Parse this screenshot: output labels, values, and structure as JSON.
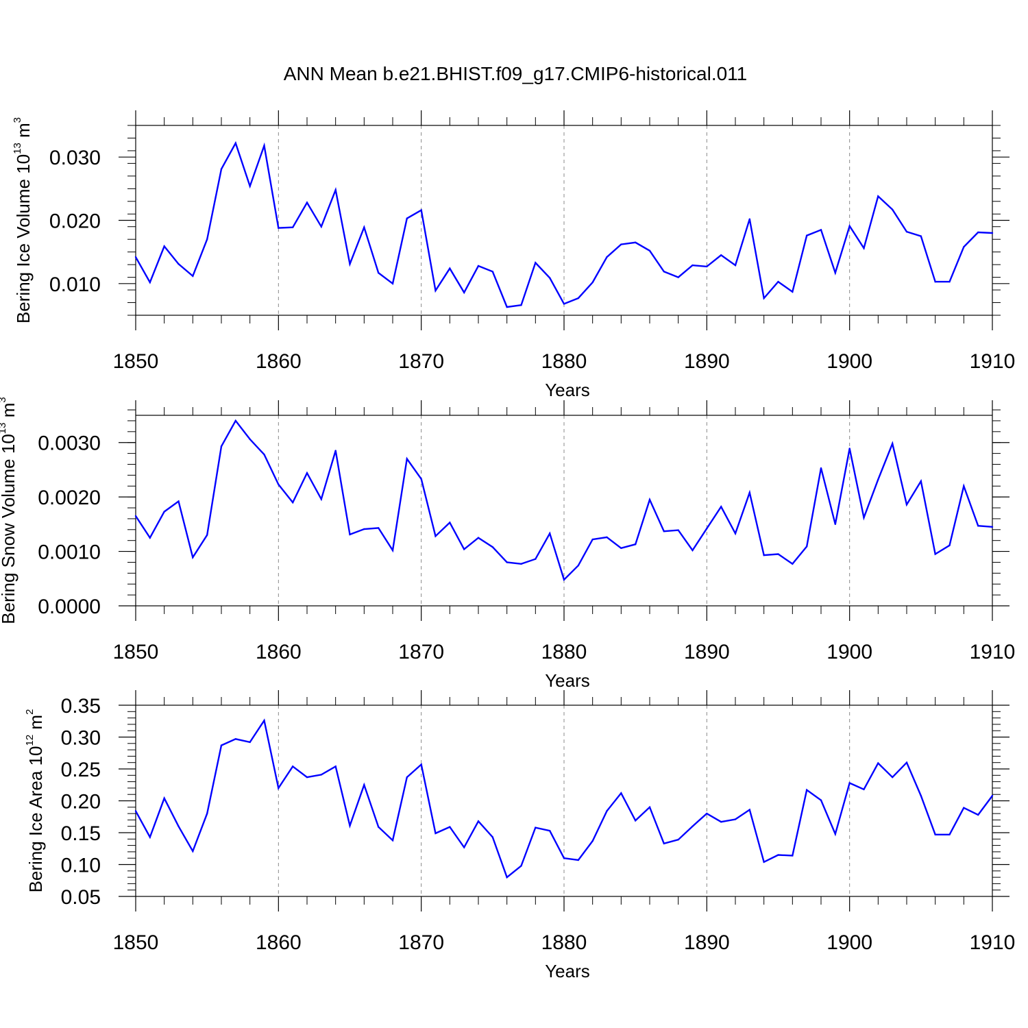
{
  "title": "ANN Mean b.e21.BHIST.f09_g17.CMIP6-historical.011",
  "colors": {
    "line": "#0000ff",
    "axes": "#000000",
    "grid": "#888888"
  },
  "chart_data": [
    {
      "type": "line",
      "ylabel": {
        "text": "Bering Ice Volume 10",
        "exp": "13",
        "unit": " m",
        "unit_exp": "3"
      },
      "xlabel": "Years",
      "xlim": [
        1850,
        1910
      ],
      "ylim": [
        0.005,
        0.035
      ],
      "xticks": [
        1850,
        1860,
        1870,
        1880,
        1890,
        1900,
        1910
      ],
      "xtick_labels": [
        "1850",
        "1860",
        "1870",
        "1880",
        "1890",
        "1900",
        "1910"
      ],
      "yticks": [
        0.01,
        0.02,
        0.03
      ],
      "ytick_labels": [
        "0.010",
        "0.020",
        "0.030"
      ],
      "yminor_step": 0.002,
      "grid": "vertical dashed at major x ticks",
      "series": [
        {
          "name": "Bering Ice Volume",
          "x": [
            1850,
            1851,
            1852,
            1853,
            1854,
            1855,
            1856,
            1857,
            1858,
            1859,
            1860,
            1861,
            1862,
            1863,
            1864,
            1865,
            1866,
            1867,
            1868,
            1869,
            1870,
            1871,
            1872,
            1873,
            1874,
            1875,
            1876,
            1877,
            1878,
            1879,
            1880,
            1881,
            1882,
            1883,
            1884,
            1885,
            1886,
            1887,
            1888,
            1889,
            1890,
            1891,
            1892,
            1893,
            1894,
            1895,
            1896,
            1897,
            1898,
            1899,
            1900,
            1901,
            1902,
            1903,
            1904,
            1905,
            1906,
            1907,
            1908,
            1909,
            1910
          ],
          "values": [
            0.0142,
            0.0102,
            0.0159,
            0.0131,
            0.0112,
            0.017,
            0.0281,
            0.0322,
            0.0254,
            0.0318,
            0.0188,
            0.0189,
            0.0228,
            0.019,
            0.0248,
            0.0131,
            0.0189,
            0.0117,
            0.01,
            0.0203,
            0.0216,
            0.0089,
            0.0124,
            0.0086,
            0.0128,
            0.0119,
            0.0063,
            0.0066,
            0.0133,
            0.0109,
            0.0068,
            0.0077,
            0.0102,
            0.0142,
            0.0162,
            0.0165,
            0.0152,
            0.0119,
            0.011,
            0.0129,
            0.0127,
            0.0145,
            0.0129,
            0.0202,
            0.0077,
            0.0103,
            0.0087,
            0.0176,
            0.0185,
            0.0117,
            0.0191,
            0.0156,
            0.0238,
            0.0217,
            0.0182,
            0.0175,
            0.0103,
            0.0103,
            0.0158,
            0.0181,
            0.018
          ]
        }
      ]
    },
    {
      "type": "line",
      "ylabel": {
        "text": "Bering Snow Volume 10",
        "exp": "13",
        "unit": " m",
        "unit_exp": "3"
      },
      "xlabel": "Years",
      "xlim": [
        1850,
        1910
      ],
      "ylim": [
        0.0,
        0.0035
      ],
      "xticks": [
        1850,
        1860,
        1870,
        1880,
        1890,
        1900,
        1910
      ],
      "xtick_labels": [
        "1850",
        "1860",
        "1870",
        "1880",
        "1890",
        "1900",
        "1910"
      ],
      "yticks": [
        0.0,
        0.001,
        0.002,
        0.003
      ],
      "ytick_labels": [
        "0.0000",
        "0.0010",
        "0.0020",
        "0.0030"
      ],
      "yminor_step": 0.0002,
      "grid": "vertical dashed at major x ticks",
      "series": [
        {
          "name": "Bering Snow Volume",
          "x": [
            1850,
            1851,
            1852,
            1853,
            1854,
            1855,
            1856,
            1857,
            1858,
            1859,
            1860,
            1861,
            1862,
            1863,
            1864,
            1865,
            1866,
            1867,
            1868,
            1869,
            1870,
            1871,
            1872,
            1873,
            1874,
            1875,
            1876,
            1877,
            1878,
            1879,
            1880,
            1881,
            1882,
            1883,
            1884,
            1885,
            1886,
            1887,
            1888,
            1889,
            1890,
            1891,
            1892,
            1893,
            1894,
            1895,
            1896,
            1897,
            1898,
            1899,
            1900,
            1901,
            1902,
            1903,
            1904,
            1905,
            1906,
            1907,
            1908,
            1909,
            1910
          ],
          "values": [
            0.00165,
            0.00125,
            0.00173,
            0.00192,
            0.00089,
            0.0013,
            0.00293,
            0.0034,
            0.00306,
            0.00278,
            0.00223,
            0.0019,
            0.00244,
            0.00196,
            0.00285,
            0.00131,
            0.00141,
            0.00143,
            0.00102,
            0.0027,
            0.00233,
            0.00128,
            0.00153,
            0.00104,
            0.00125,
            0.00108,
            0.0008,
            0.00077,
            0.00086,
            0.00133,
            0.00048,
            0.00074,
            0.00122,
            0.00126,
            0.00106,
            0.00113,
            0.00195,
            0.00137,
            0.00139,
            0.00102,
            0.00142,
            0.00182,
            0.00133,
            0.00208,
            0.00093,
            0.00095,
            0.00077,
            0.00109,
            0.00253,
            0.0015,
            0.00289,
            0.00162,
            0.00232,
            0.00298,
            0.00186,
            0.00229,
            0.00095,
            0.00111,
            0.0022,
            0.00147,
            0.00145
          ]
        }
      ]
    },
    {
      "type": "line",
      "ylabel": {
        "text": "Bering Ice Area 10",
        "exp": "12",
        "unit": " m",
        "unit_exp": "2"
      },
      "xlabel": "Years",
      "xlim": [
        1850,
        1910
      ],
      "ylim": [
        0.05,
        0.35
      ],
      "xticks": [
        1850,
        1860,
        1870,
        1880,
        1890,
        1900,
        1910
      ],
      "xtick_labels": [
        "1850",
        "1860",
        "1870",
        "1880",
        "1890",
        "1900",
        "1910"
      ],
      "yticks": [
        0.05,
        0.1,
        0.15,
        0.2,
        0.25,
        0.3,
        0.35
      ],
      "ytick_labels": [
        "0.05",
        "0.10",
        "0.15",
        "0.20",
        "0.25",
        "0.30",
        "0.35"
      ],
      "yminor_step": 0.01,
      "grid": "vertical dashed at major x ticks",
      "series": [
        {
          "name": "Bering Ice Area",
          "x": [
            1850,
            1851,
            1852,
            1853,
            1854,
            1855,
            1856,
            1857,
            1858,
            1859,
            1860,
            1861,
            1862,
            1863,
            1864,
            1865,
            1866,
            1867,
            1868,
            1869,
            1870,
            1871,
            1872,
            1873,
            1874,
            1875,
            1876,
            1877,
            1878,
            1879,
            1880,
            1881,
            1882,
            1883,
            1884,
            1885,
            1886,
            1887,
            1888,
            1889,
            1890,
            1891,
            1892,
            1893,
            1894,
            1895,
            1896,
            1897,
            1898,
            1899,
            1900,
            1901,
            1902,
            1903,
            1904,
            1905,
            1906,
            1907,
            1908,
            1909,
            1910
          ],
          "values": [
            0.184,
            0.143,
            0.204,
            0.16,
            0.121,
            0.18,
            0.287,
            0.297,
            0.292,
            0.326,
            0.22,
            0.254,
            0.237,
            0.241,
            0.254,
            0.161,
            0.225,
            0.159,
            0.138,
            0.237,
            0.257,
            0.149,
            0.159,
            0.127,
            0.168,
            0.143,
            0.08,
            0.098,
            0.158,
            0.153,
            0.11,
            0.107,
            0.137,
            0.184,
            0.212,
            0.169,
            0.19,
            0.133,
            0.139,
            0.16,
            0.18,
            0.167,
            0.171,
            0.186,
            0.104,
            0.115,
            0.114,
            0.217,
            0.201,
            0.148,
            0.228,
            0.218,
            0.259,
            0.237,
            0.26,
            0.208,
            0.147,
            0.147,
            0.189,
            0.178,
            0.208
          ]
        }
      ]
    }
  ]
}
